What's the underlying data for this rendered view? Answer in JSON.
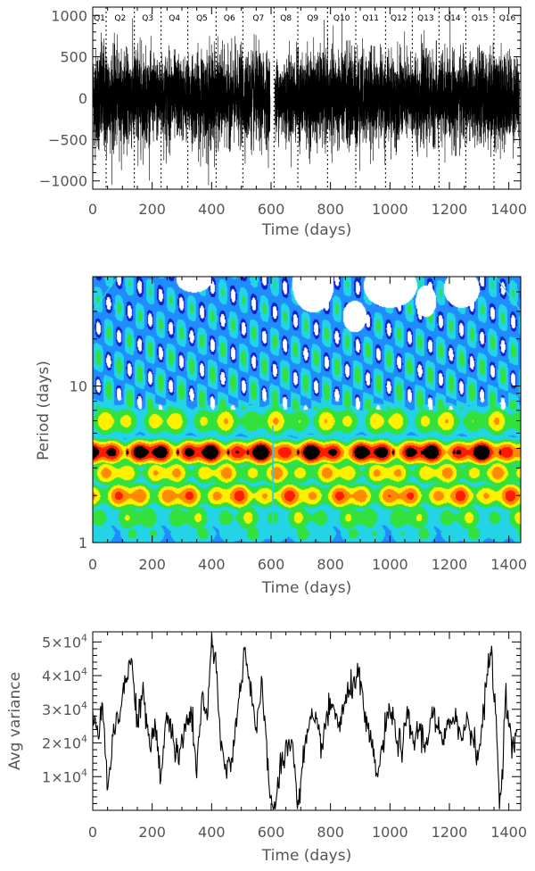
{
  "chart_data": [
    {
      "id": "light-curve",
      "type": "line",
      "title": "",
      "xlabel": "Time (days)",
      "ylabel": "",
      "xlim": [
        0,
        1440
      ],
      "ylim": [
        -1100,
        1100
      ],
      "x_ticks": [
        0,
        200,
        400,
        600,
        800,
        1000,
        1200,
        1400
      ],
      "y_ticks": [
        -1000,
        -500,
        0,
        500,
        1000
      ],
      "y_tick_labels": [
        "−1000",
        "−500",
        "0",
        "500",
        "1000"
      ],
      "gap": [
        597,
        613
      ],
      "quarters": [
        {
          "label": "Q1",
          "start": 0
        },
        {
          "label": "Q2",
          "start": 45
        },
        {
          "label": "Q3",
          "start": 140
        },
        {
          "label": "Q4",
          "start": 230
        },
        {
          "label": "Q5",
          "start": 320
        },
        {
          "label": "Q6",
          "start": 415
        },
        {
          "label": "Q7",
          "start": 505
        },
        {
          "label": "Q8",
          "start": 610
        },
        {
          "label": "Q9",
          "start": 690
        },
        {
          "label": "Q10",
          "start": 790
        },
        {
          "label": "Q11",
          "start": 885
        },
        {
          "label": "Q12",
          "start": 985
        },
        {
          "label": "Q13",
          "start": 1075
        },
        {
          "label": "Q14",
          "start": 1165
        },
        {
          "label": "Q15",
          "start": 1255
        },
        {
          "label": "Q16",
          "start": 1350
        }
      ],
      "amplitude_envelope": {
        "x": [
          0,
          40,
          100,
          150,
          200,
          250,
          300,
          350,
          400,
          450,
          500,
          550,
          597,
          613,
          650,
          700,
          750,
          800,
          850,
          900,
          950,
          1000,
          1050,
          1100,
          1150,
          1200,
          1250,
          1300,
          1350,
          1400,
          1435
        ],
        "y": [
          650,
          800,
          600,
          750,
          550,
          650,
          550,
          600,
          700,
          580,
          620,
          650,
          600,
          520,
          580,
          600,
          650,
          620,
          700,
          680,
          600,
          620,
          580,
          620,
          600,
          620,
          580,
          600,
          680,
          600,
          580
        ]
      }
    },
    {
      "id": "wavelet-power",
      "type": "heatmap",
      "title": "",
      "xlabel": "Time (days)",
      "ylabel": "Period (days)",
      "xlim": [
        0,
        1440
      ],
      "ylim": [
        1,
        50
      ],
      "yscale": "log",
      "x_ticks": [
        0,
        200,
        400,
        600,
        800,
        1000,
        1200,
        1400
      ],
      "y_ticks": [
        1,
        10
      ],
      "colormap": [
        "#ffffff",
        "#000000",
        "#1b0a58",
        "#0e1cc8",
        "#1f8cff",
        "#22d4e6",
        "#33e13c",
        "#fff000",
        "#ff8a00",
        "#ff1a00",
        "#000000"
      ],
      "power_bands": [
        {
          "period": 1.15,
          "level": 0.33,
          "width": 0.1
        },
        {
          "period": 1.45,
          "level": 0.42,
          "width": 0.12
        },
        {
          "period": 2.0,
          "level": 0.66,
          "width": 0.1
        },
        {
          "period": 2.8,
          "level": 0.56,
          "width": 0.1
        },
        {
          "period": 3.8,
          "level": 0.9,
          "width": 0.09
        },
        {
          "period": 6.0,
          "level": 0.5,
          "width": 0.12
        }
      ],
      "hot_spots": [
        {
          "x": 115,
          "period": 3.8
        },
        {
          "x": 175,
          "period": 3.8
        },
        {
          "x": 285,
          "period": 3.8
        },
        {
          "x": 395,
          "period": 3.8
        },
        {
          "x": 455,
          "period": 3.8
        },
        {
          "x": 520,
          "period": 3.8
        },
        {
          "x": 555,
          "period": 3.8
        },
        {
          "x": 690,
          "period": 3.8
        },
        {
          "x": 795,
          "period": 3.8
        },
        {
          "x": 895,
          "period": 3.8
        },
        {
          "x": 1010,
          "period": 3.8
        },
        {
          "x": 1105,
          "period": 3.8
        },
        {
          "x": 1215,
          "period": 3.8
        },
        {
          "x": 1325,
          "period": 3.8
        },
        {
          "x": 1370,
          "period": 3.8
        }
      ],
      "white_regions": [
        {
          "x": 740,
          "period": 45,
          "rx": 70,
          "rdec": 0.18
        },
        {
          "x": 1000,
          "period": 44,
          "rx": 90,
          "rdec": 0.14
        },
        {
          "x": 1240,
          "period": 42,
          "rx": 60,
          "rdec": 0.12
        },
        {
          "x": 340,
          "period": 48,
          "rx": 60,
          "rdec": 0.08
        },
        {
          "x": 880,
          "period": 28,
          "rx": 40,
          "rdec": 0.1
        },
        {
          "x": 1120,
          "period": 35,
          "rx": 35,
          "rdec": 0.1
        }
      ]
    },
    {
      "id": "avg-variance",
      "type": "line",
      "title": "",
      "xlabel": "Time (days)",
      "ylabel": "Avg variance",
      "xlim": [
        0,
        1440
      ],
      "ylim": [
        0,
        53000
      ],
      "x_ticks": [
        0,
        200,
        400,
        600,
        800,
        1000,
        1200,
        1400
      ],
      "y_ticks": [
        10000,
        20000,
        30000,
        40000,
        50000
      ],
      "y_tick_mantissas": [
        "1",
        "2",
        "3",
        "4",
        "5"
      ],
      "y_tick_base": "×10",
      "y_tick_exponent": "4",
      "x": [
        0,
        20,
        35,
        50,
        70,
        90,
        110,
        130,
        150,
        170,
        190,
        210,
        230,
        250,
        270,
        290,
        310,
        330,
        350,
        370,
        385,
        400,
        415,
        430,
        450,
        470,
        490,
        510,
        530,
        550,
        570,
        585,
        600,
        615,
        630,
        650,
        670,
        690,
        710,
        730,
        750,
        770,
        790,
        810,
        830,
        850,
        870,
        890,
        905,
        920,
        940,
        960,
        980,
        1000,
        1020,
        1040,
        1060,
        1080,
        1100,
        1120,
        1140,
        1160,
        1180,
        1200,
        1220,
        1240,
        1260,
        1280,
        1300,
        1320,
        1340,
        1355,
        1370,
        1390,
        1410,
        1430
      ],
      "y": [
        30000,
        21000,
        32000,
        5000,
        24000,
        30000,
        38000,
        45000,
        27000,
        35000,
        18000,
        25000,
        10000,
        30000,
        21000,
        15000,
        24000,
        30000,
        12000,
        35000,
        25000,
        52000,
        41000,
        20000,
        11000,
        18000,
        30000,
        48000,
        38000,
        24000,
        36000,
        18000,
        2000,
        1000,
        12000,
        18000,
        21000,
        2000,
        16000,
        26000,
        25000,
        20000,
        28000,
        31000,
        25000,
        32000,
        36000,
        42000,
        34000,
        25000,
        18000,
        10000,
        22000,
        30000,
        23000,
        18000,
        28000,
        20000,
        25000,
        18000,
        30000,
        24000,
        20000,
        25000,
        30000,
        20000,
        28000,
        21000,
        17000,
        34000,
        48000,
        30000,
        1000,
        34000,
        18000,
        24000
      ]
    }
  ]
}
